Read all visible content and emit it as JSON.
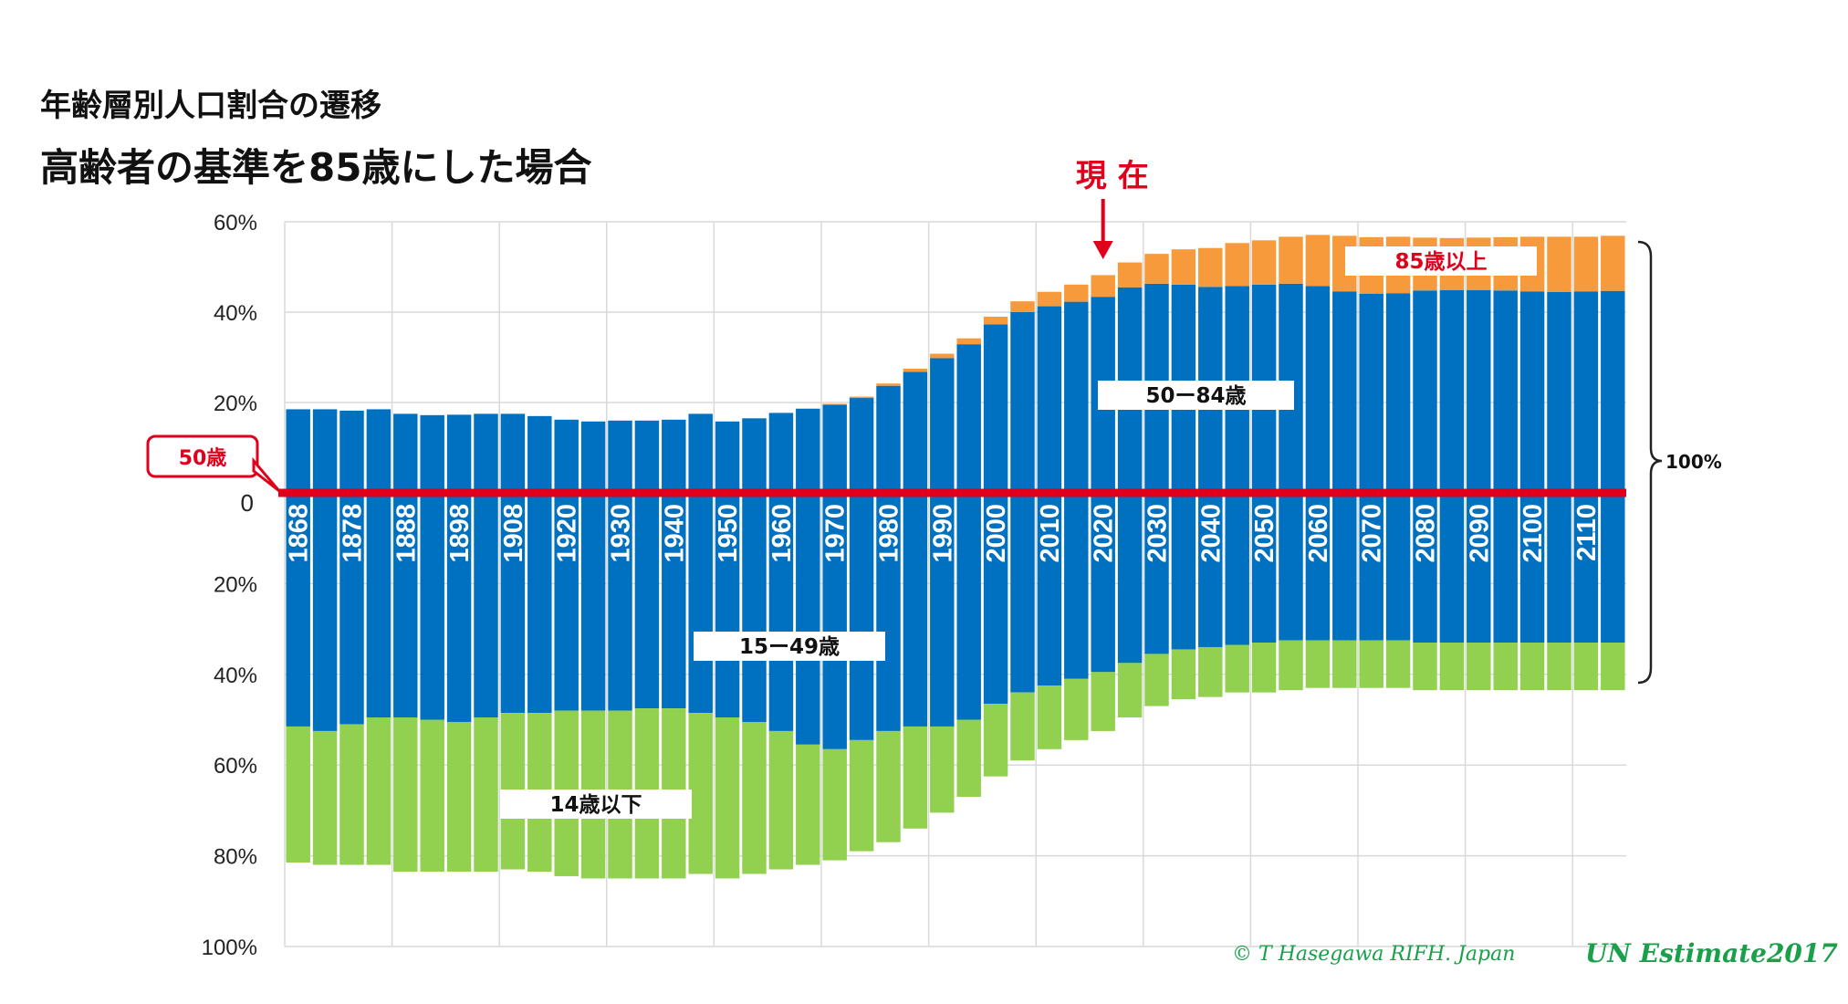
{
  "header": {
    "title": "年齢層別人口割合の遷移",
    "subtitle": "高齢者の基準を85歳にした場合"
  },
  "chart_data": {
    "type": "bar",
    "subtype": "diverging-stacked",
    "categories": [
      1868,
      1873,
      1878,
      1883,
      1888,
      1893,
      1898,
      1903,
      1908,
      1915,
      1920,
      1925,
      1930,
      1935,
      1940,
      1945,
      1950,
      1955,
      1960,
      1965,
      1970,
      1975,
      1980,
      1985,
      1990,
      1995,
      2000,
      2005,
      2010,
      2015,
      2020,
      2025,
      2030,
      2035,
      2040,
      2045,
      2050,
      2055,
      2060,
      2065,
      2070,
      2075,
      2080,
      2085,
      2090,
      2095,
      2100,
      2105,
      2110,
      2115
    ],
    "tick_labels": [
      "1868",
      "1878",
      "1888",
      "1898",
      "1908",
      "1920",
      "1930",
      "1940",
      "1950",
      "1960",
      "1970",
      "1980",
      "1990",
      "2000",
      "2010",
      "2020",
      "2030",
      "2040",
      "2050",
      "2060",
      "2070",
      "2080",
      "2090",
      "2100",
      "2110"
    ],
    "y_ticks_above": [
      "60%",
      "40%",
      "20%"
    ],
    "y_tick_zero": "0",
    "y_ticks_below": [
      "20%",
      "40%",
      "60%",
      "80%",
      "100%"
    ],
    "ylim_above": [
      0,
      60
    ],
    "ylim_below": [
      0,
      100
    ],
    "series": [
      {
        "name": "85歳以上",
        "direction": "up",
        "color": "#f79a3c",
        "values": [
          0,
          0,
          0,
          0,
          0,
          0,
          0,
          0,
          0,
          0,
          0,
          0,
          0,
          0,
          0,
          0,
          0,
          0,
          0,
          0.1,
          0.2,
          0.3,
          0.5,
          0.7,
          1.0,
          1.3,
          1.7,
          2.4,
          3.2,
          3.8,
          4.8,
          5.5,
          6.6,
          7.8,
          8.6,
          9.5,
          9.8,
          10.4,
          11.3,
          12.3,
          12.5,
          12.5,
          11.7,
          11.5,
          11.6,
          11.8,
          12.1,
          12.2,
          12.1,
          12.2
        ]
      },
      {
        "name": "50ー84歳",
        "direction": "up",
        "color": "#0070c0",
        "values": [
          18.5,
          18.5,
          18.2,
          18.5,
          17.5,
          17.2,
          17.3,
          17.5,
          17.5,
          17.0,
          16.2,
          15.8,
          16.0,
          16.0,
          16.2,
          17.5,
          15.8,
          16.5,
          17.7,
          18.6,
          19.5,
          21.0,
          23.7,
          26.8,
          29.8,
          32.9,
          37.3,
          40.0,
          41.3,
          42.3,
          43.4,
          45.5,
          46.3,
          46.1,
          45.6,
          45.8,
          46.1,
          46.3,
          45.8,
          44.6,
          44.1,
          44.2,
          44.8,
          44.9,
          44.9,
          44.8,
          44.6,
          44.5,
          44.6,
          44.7
        ]
      },
      {
        "name": "15ー49歳",
        "direction": "down",
        "color": "#0070c0",
        "values": [
          51.5,
          52.5,
          51.0,
          49.5,
          49.5,
          50.0,
          50.5,
          49.5,
          48.5,
          48.5,
          48.0,
          48.0,
          48.0,
          47.5,
          47.5,
          48.5,
          49.5,
          50.5,
          52.5,
          55.5,
          56.5,
          54.5,
          52.5,
          51.5,
          51.5,
          50.0,
          46.5,
          44.0,
          42.5,
          41.0,
          39.5,
          37.5,
          35.5,
          34.5,
          34.0,
          33.5,
          33.0,
          32.5,
          32.5,
          32.5,
          32.5,
          32.5,
          33.0,
          33.0,
          33.0,
          33.0,
          33.0,
          33.0,
          33.0,
          33.0
        ]
      },
      {
        "name": "14歳以下",
        "direction": "down",
        "color": "#92d050",
        "values": [
          30.0,
          29.5,
          31.0,
          32.5,
          34.0,
          33.5,
          33.0,
          34.0,
          34.5,
          35.0,
          36.5,
          37.0,
          37.0,
          37.5,
          37.5,
          35.5,
          35.5,
          33.5,
          30.5,
          26.5,
          24.5,
          24.5,
          24.5,
          22.5,
          19.0,
          17.0,
          16.0,
          15.0,
          14.0,
          13.5,
          13.0,
          12.0,
          11.5,
          11.0,
          11.0,
          10.5,
          11.0,
          11.0,
          10.5,
          10.5,
          10.5,
          10.5,
          10.5,
          10.5,
          10.5,
          10.5,
          10.5,
          10.5,
          10.5,
          10.5
        ]
      }
    ],
    "annotations": {
      "now_label": "現 在",
      "now_year": 2020,
      "baseline_label": "50歳",
      "total_label": "100%",
      "label_85plus": "85歳以上",
      "label_50_84": "50ー84歳",
      "label_15_49": "15ー49歳",
      "label_14under": "14歳以下"
    },
    "colors": {
      "baseline": "#e0001b",
      "grid": "#d9d9d9"
    },
    "grid": true
  },
  "credits": {
    "left": "© T Hasegawa   RIFH. Japan",
    "right": "UN Estimate2017"
  }
}
